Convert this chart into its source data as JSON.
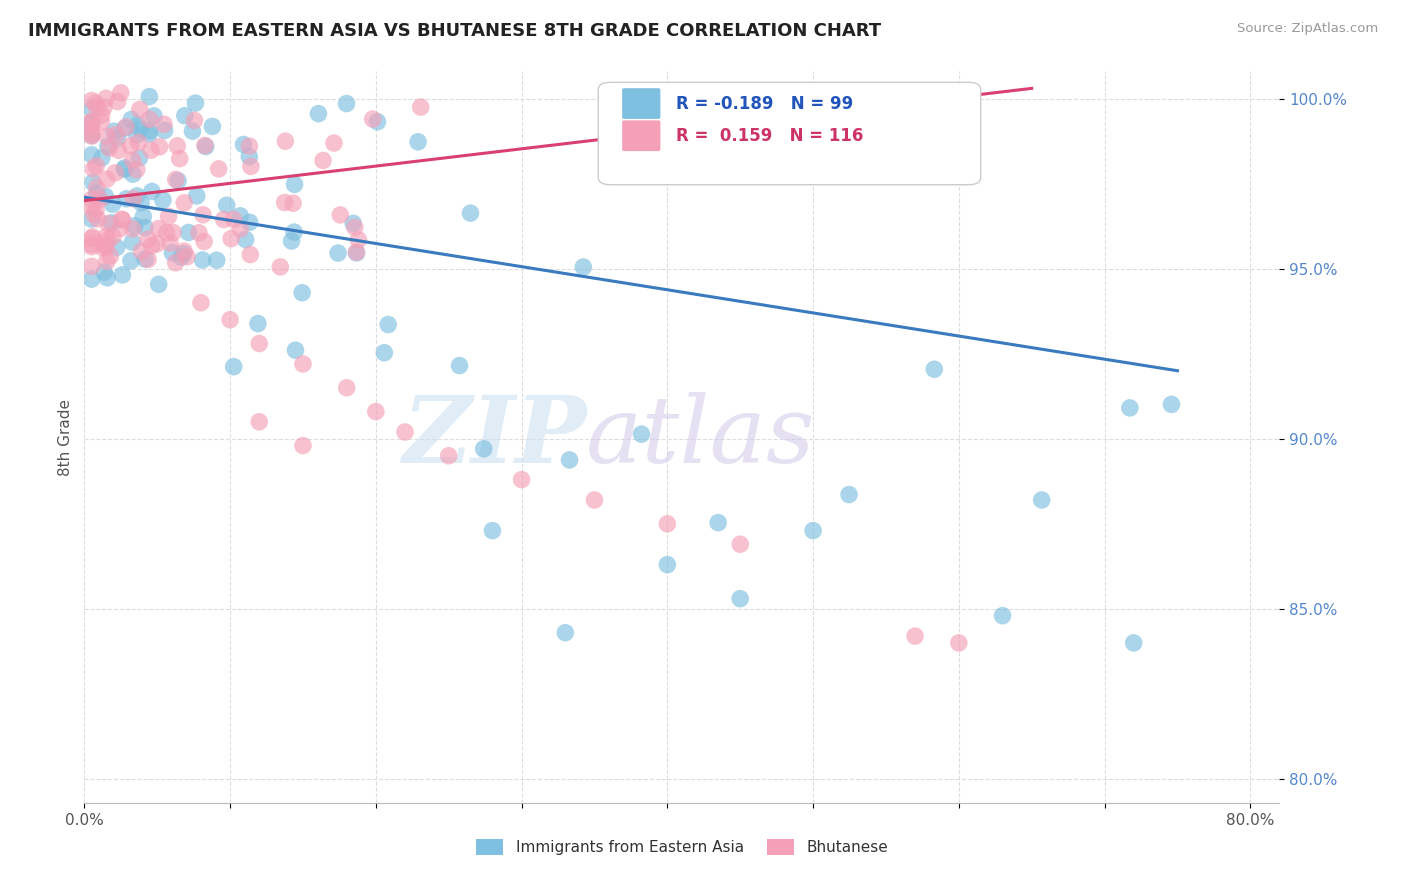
{
  "title": "IMMIGRANTS FROM EASTERN ASIA VS BHUTANESE 8TH GRADE CORRELATION CHART",
  "source": "Source: ZipAtlas.com",
  "ylabel": "8th Grade",
  "xlim": [
    0.0,
    0.82
  ],
  "ylim": [
    0.793,
    1.008
  ],
  "yticks": [
    0.8,
    0.85,
    0.9,
    0.95,
    1.0
  ],
  "ytick_labels": [
    "80.0%",
    "85.0%",
    "90.0%",
    "95.0%",
    "100.0%"
  ],
  "xtick_labels": [
    "0.0%",
    "",
    "",
    "",
    "",
    "",
    "",
    "",
    "80.0%"
  ],
  "blue_R": -0.189,
  "blue_N": 99,
  "pink_R": 0.159,
  "pink_N": 116,
  "blue_color": "#7fbfdf",
  "pink_color": "#f4a0b8",
  "blue_line_color": "#3a7abf",
  "pink_line_color": "#d94070",
  "watermark_zip": "ZIP",
  "watermark_atlas": "atlas",
  "legend_blue_label": "Immigrants from Eastern Asia",
  "legend_pink_label": "Bhutanese",
  "blue_trend_x0": 0.0,
  "blue_trend_x1": 0.75,
  "blue_trend_y0": 0.971,
  "blue_trend_y1": 0.92,
  "pink_trend_x0": 0.0,
  "pink_trend_x1": 0.65,
  "pink_trend_y0": 0.97,
  "pink_trend_y1": 1.003
}
